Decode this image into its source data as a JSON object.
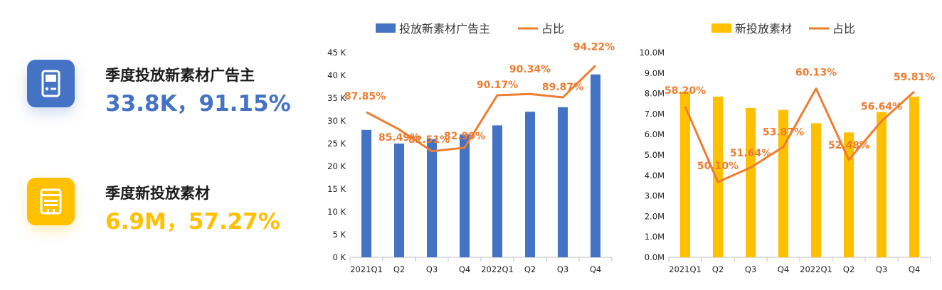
{
  "colors": {
    "blue": "#4472C4",
    "yellow": "#FFC000",
    "orange": "#ED7D31"
  },
  "kpis": [
    {
      "title": "季度投放新素材广告主",
      "value": "33.8K，91.15%",
      "icon": "advertiser-device-icon"
    },
    {
      "title": "季度新投放素材",
      "value": "6.9M，57.27%",
      "icon": "material-film-icon"
    }
  ],
  "chart_data": [
    {
      "type": "bar",
      "categories": [
        "2021Q1",
        "Q2",
        "Q3",
        "Q4",
        "2022Q1",
        "Q2",
        "Q3",
        "Q4"
      ],
      "series": [
        {
          "name": "投放新素材广告主",
          "type": "bar",
          "axis": "left",
          "values": [
            28,
            25,
            26,
            27,
            29,
            32,
            33,
            40.2
          ]
        },
        {
          "name": "占比",
          "type": "line",
          "axis": "right",
          "values": [
            87.85,
            85.49,
            82.51,
            82.99,
            90.17,
            90.34,
            89.87,
            94.22
          ],
          "labels": [
            "87.85%",
            "85.49%",
            "82.51%",
            "82.99%",
            "90.17%",
            "90.34%",
            "89.87%",
            "94.22%"
          ]
        }
      ],
      "y_ticks": [
        "0 K",
        "5 K",
        "10 K",
        "15 K",
        "20 K",
        "25 K",
        "30 K",
        "35 K",
        "40 K",
        "45 K"
      ],
      "ylim": [
        0,
        45
      ],
      "y2lim": [
        68,
        96
      ],
      "legend_position": "top"
    },
    {
      "type": "bar",
      "categories": [
        "2021Q1",
        "Q2",
        "Q3",
        "Q4",
        "2022Q1",
        "Q2",
        "Q3",
        "Q4"
      ],
      "series": [
        {
          "name": "新投放素材",
          "type": "bar",
          "axis": "left",
          "values": [
            8.1,
            7.85,
            7.3,
            7.2,
            6.55,
            6.1,
            7.1,
            7.85
          ]
        },
        {
          "name": "占比",
          "type": "line",
          "axis": "right",
          "values": [
            58.2,
            50.1,
            51.64,
            53.87,
            60.13,
            52.48,
            56.64,
            59.81
          ],
          "labels": [
            "58.20%",
            "50.10%",
            "51.64%",
            "53.87%",
            "60.13%",
            "52.48%",
            "56.64%",
            "59.81%"
          ]
        }
      ],
      "y_ticks": [
        "0.0M",
        "1.0M",
        "2.0M",
        "3.0M",
        "4.0M",
        "5.0M",
        "6.0M",
        "7.0M",
        "8.0M",
        "9.0M",
        "10.0M"
      ],
      "ylim": [
        0,
        10
      ],
      "y2lim": [
        42,
        64
      ],
      "legend_position": "top"
    }
  ]
}
